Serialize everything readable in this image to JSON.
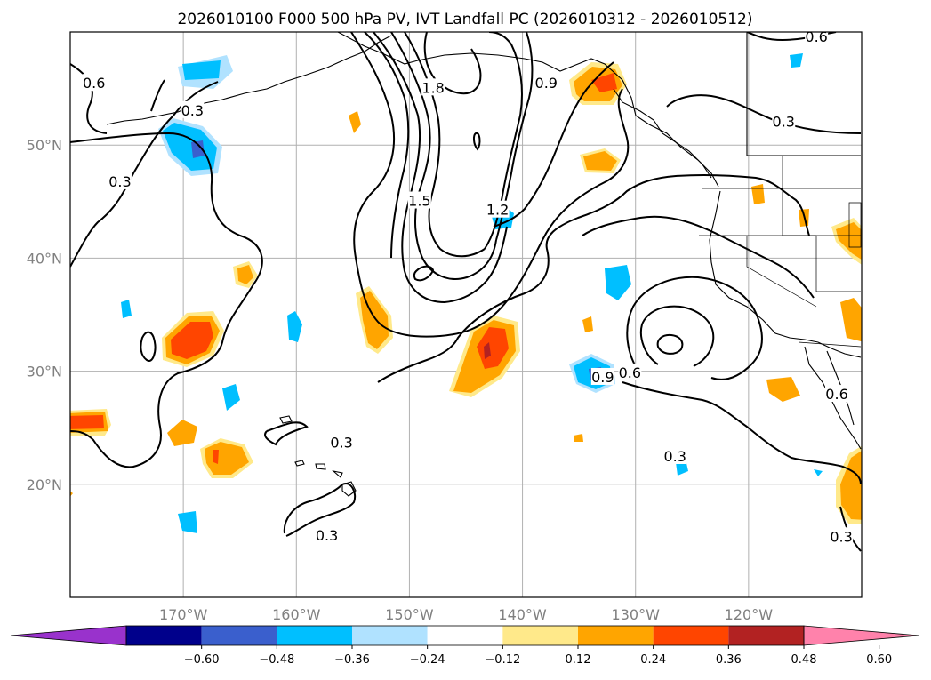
{
  "title": "2026010100 F000 500 hPa PV, IVT Landfall PC (2026010312 - 2026010512)",
  "map": {
    "lon_range": [
      -180,
      -110
    ],
    "lat_range": [
      10,
      60
    ],
    "gridlines": true,
    "lat_labels": [
      {
        "lat": 50,
        "text": "50°N"
      },
      {
        "lat": 40,
        "text": "40°N"
      },
      {
        "lat": 30,
        "text": "30°N"
      },
      {
        "lat": 20,
        "text": "20°N"
      }
    ],
    "lon_labels": [
      {
        "lon": -170,
        "text": "170°W"
      },
      {
        "lon": -160,
        "text": "160°W"
      },
      {
        "lon": -150,
        "text": "150°W"
      },
      {
        "lon": -140,
        "text": "140°W"
      },
      {
        "lon": -130,
        "text": "130°W"
      },
      {
        "lon": -120,
        "text": "120°W"
      }
    ],
    "contour_labels": [
      {
        "lon": -177.9,
        "lat": 55.5,
        "text": "0.6"
      },
      {
        "lon": -169.2,
        "lat": 53.1,
        "text": "0.3"
      },
      {
        "lon": -175.6,
        "lat": 46.8,
        "text": "0.3"
      },
      {
        "lon": -142.2,
        "lat": 44.3,
        "text": "1.2"
      },
      {
        "lon": -149.1,
        "lat": 45.1,
        "text": "1.5"
      },
      {
        "lon": -147.9,
        "lat": 55.1,
        "text": "1.8"
      },
      {
        "lon": -137.9,
        "lat": 55.5,
        "text": "0.9"
      },
      {
        "lon": -116.9,
        "lat": 52.1,
        "text": "0.3"
      },
      {
        "lon": -132.9,
        "lat": 29.5,
        "text": "0.9"
      },
      {
        "lon": -130.5,
        "lat": 29.9,
        "text": "0.6"
      },
      {
        "lon": -112.2,
        "lat": 28.0,
        "text": "0.6"
      },
      {
        "lon": -126.5,
        "lat": 22.5,
        "text": "0.3"
      },
      {
        "lon": -156.0,
        "lat": 23.7,
        "text": "0.3"
      },
      {
        "lon": -157.3,
        "lat": 15.5,
        "text": "0.3"
      },
      {
        "lon": -111.8,
        "lat": 15.4,
        "text": "0.3"
      },
      {
        "lon": -114.0,
        "lat": 59.6,
        "text": "0.6"
      }
    ]
  },
  "colorbar": {
    "colors": [
      "#9932cc",
      "#00008b",
      "#3a5fcd",
      "#00bfff",
      "#b0e2ff",
      "#ffffff",
      "#ffe98a",
      "#ffa500",
      "#ff4500",
      "#b22222",
      "#ff82ab"
    ],
    "tick_labels": [
      "−0.60",
      "−0.48",
      "−0.36",
      "−0.24",
      "−0.12",
      "0.12",
      "0.24",
      "0.36",
      "0.48",
      "0.60"
    ]
  },
  "colors": {
    "grid": "#b0b0b0",
    "contour": "#000000",
    "coast": "#000000"
  }
}
